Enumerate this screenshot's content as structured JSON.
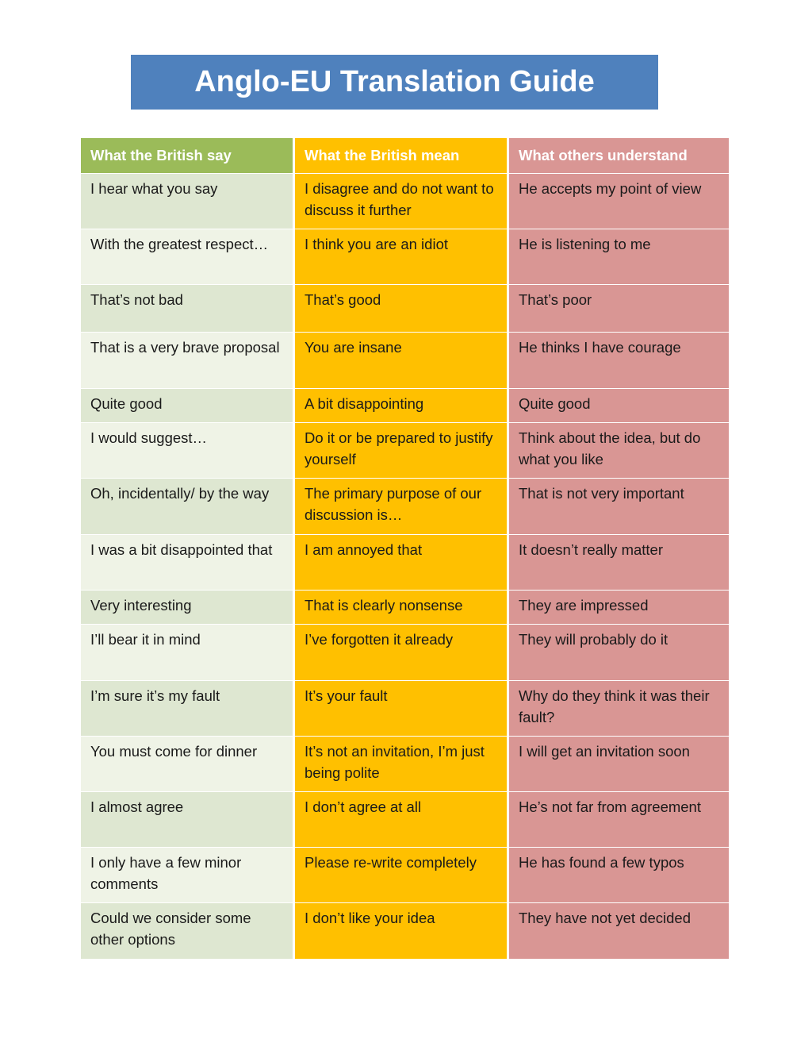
{
  "title": "Anglo-EU Translation Guide",
  "headers": [
    "What the British say",
    "What the British mean",
    "What others understand"
  ],
  "rows": [
    [
      "I hear what you say",
      "I disagree and do not want to discuss it further",
      "He accepts my point of view"
    ],
    [
      "With the greatest respect…",
      "I think you are an idiot",
      "He is listening to me"
    ],
    [
      "That’s not bad",
      "That’s good",
      "That’s poor"
    ],
    [
      "That is a very brave proposal",
      "You are insane",
      "He thinks I have courage"
    ],
    [
      "Quite good",
      "A bit disappointing",
      "Quite good"
    ],
    [
      "I would suggest…",
      "Do it or be prepared to justify yourself",
      "Think about the idea, but do what you like"
    ],
    [
      "Oh, incidentally/ by the way",
      "The primary purpose of our discussion is…",
      "That is not very important"
    ],
    [
      "I was a bit disappointed that",
      "I am annoyed that",
      "It doesn’t really matter"
    ],
    [
      "Very interesting",
      "That is clearly nonsense",
      "They are impressed"
    ],
    [
      "I’ll bear it in mind",
      "I’ve forgotten it already",
      "They will probably do it"
    ],
    [
      "I’m sure it’s my fault",
      "It’s your fault",
      "Why do they think it was their fault?"
    ],
    [
      "You must come for dinner",
      "It’s not an invitation, I’m just being polite",
      "I will get an invitation soon"
    ],
    [
      "I almost agree",
      "I don’t agree at all",
      "He’s not far from agreement"
    ],
    [
      "I only have a few minor comments",
      "Please re-write completely",
      "He has found a few typos"
    ],
    [
      "Could we consider some other options",
      "I don’t like your idea",
      "They have not yet decided"
    ]
  ]
}
